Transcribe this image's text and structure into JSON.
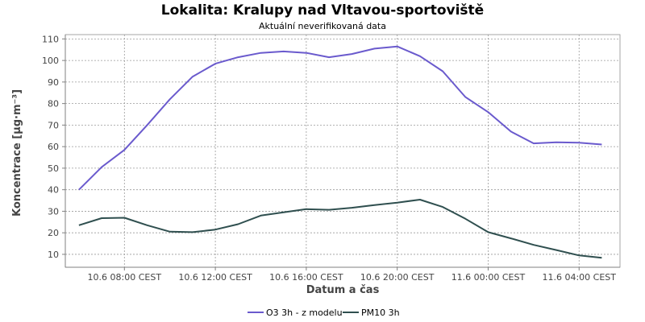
{
  "chart_data": {
    "type": "line",
    "title": "Lokalita: Kralupy nad Vltavou-sportoviště",
    "subtitle": "Aktuální neverifikovaná data",
    "xlabel": "Datum a čas",
    "ylabel": "Koncentrace [µg·m⁻³]",
    "ylim": [
      4,
      112
    ],
    "yticks": [
      10,
      20,
      30,
      40,
      50,
      60,
      70,
      80,
      90,
      100,
      110
    ],
    "xlim": [
      5.4,
      29.8
    ],
    "xticks": [
      {
        "x": 8,
        "label": "10.6 08:00 CEST"
      },
      {
        "x": 12,
        "label": "10.6 12:00 CEST"
      },
      {
        "x": 16,
        "label": "10.6 16:00 CEST"
      },
      {
        "x": 20,
        "label": "10.6 20:00 CEST"
      },
      {
        "x": 24,
        "label": "11.6 00:00 CEST"
      },
      {
        "x": 28,
        "label": "11.6 04:00 CEST"
      }
    ],
    "x": [
      6,
      7,
      8,
      9,
      10,
      11,
      12,
      13,
      14,
      15,
      16,
      17,
      18,
      19,
      20,
      21,
      22,
      23,
      24,
      25,
      26,
      27,
      28,
      29
    ],
    "series": [
      {
        "name": "O3 3h - z modelu",
        "color": "#6a5acd",
        "values": [
          40,
          50.5,
          58.5,
          70,
          82,
          92.5,
          98.5,
          101.5,
          103.5,
          104.2,
          103.5,
          101.5,
          103,
          105.5,
          106.5,
          102,
          95,
          83,
          76,
          67,
          61.5,
          62,
          61.8,
          61
        ]
      },
      {
        "name": "PM10 3h",
        "color": "#2f4f4f",
        "values": [
          23.5,
          26.8,
          27,
          23.5,
          20.5,
          20.3,
          21.5,
          24,
          28,
          29.5,
          31,
          30.7,
          31.6,
          32.9,
          34,
          35.4,
          32,
          26.5,
          20.3,
          17.4,
          14.4,
          12,
          9.5,
          8.4
        ]
      }
    ],
    "grid": true,
    "legend": "bottom-center"
  }
}
